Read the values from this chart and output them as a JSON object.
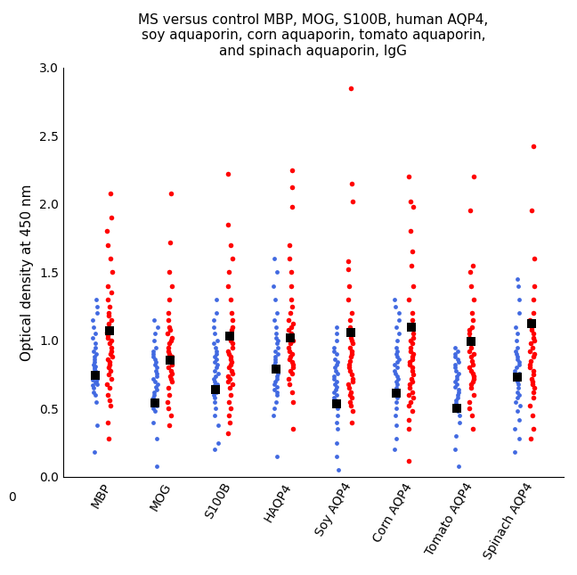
{
  "title": "MS versus control MBP, MOG, S100B, human AQP4,\nsoy aquaporin, corn aquaporin, tomato aquaporin,\nand spinach aquaporin, IgG",
  "ylabel": "Optical density at 450 nm",
  "categories": [
    "MBP",
    "MOG",
    "S100B",
    "HAQP4",
    "Soy AQP4",
    "Corn AQP4",
    "Tomato AQP4",
    "Spinach AQP4"
  ],
  "ylim": [
    0,
    3.0
  ],
  "yticks": [
    0,
    0.5,
    1.0,
    1.5,
    2.0,
    2.5,
    3.0
  ],
  "blue_color": "#4169E1",
  "red_color": "#FF0000",
  "mean_color": "#000000",
  "blue_data": {
    "MBP": [
      0.18,
      0.38,
      0.55,
      0.6,
      0.62,
      0.65,
      0.67,
      0.68,
      0.69,
      0.7,
      0.71,
      0.72,
      0.73,
      0.74,
      0.75,
      0.76,
      0.77,
      0.78,
      0.79,
      0.8,
      0.81,
      0.82,
      0.84,
      0.86,
      0.88,
      0.9,
      0.92,
      0.95,
      0.98,
      1.02,
      1.05,
      1.1,
      1.15,
      1.2,
      1.25,
      1.3
    ],
    "MOG": [
      0.08,
      0.28,
      0.4,
      0.48,
      0.5,
      0.52,
      0.54,
      0.56,
      0.58,
      0.6,
      0.62,
      0.64,
      0.66,
      0.68,
      0.7,
      0.72,
      0.74,
      0.76,
      0.78,
      0.8,
      0.82,
      0.84,
      0.86,
      0.88,
      0.9,
      0.92,
      0.95,
      1.0,
      1.05,
      1.1,
      1.15
    ],
    "S100B": [
      0.2,
      0.25,
      0.38,
      0.45,
      0.5,
      0.55,
      0.58,
      0.6,
      0.62,
      0.64,
      0.65,
      0.67,
      0.68,
      0.7,
      0.72,
      0.74,
      0.76,
      0.78,
      0.8,
      0.82,
      0.84,
      0.86,
      0.88,
      0.9,
      0.92,
      0.95,
      0.98,
      1.0,
      1.05,
      1.1,
      1.15,
      1.2,
      1.3
    ],
    "HAQP4": [
      0.15,
      0.45,
      0.5,
      0.55,
      0.6,
      0.62,
      0.64,
      0.66,
      0.68,
      0.7,
      0.72,
      0.74,
      0.76,
      0.78,
      0.8,
      0.82,
      0.84,
      0.86,
      0.88,
      0.9,
      0.92,
      0.95,
      0.98,
      1.0,
      1.02,
      1.05,
      1.1,
      1.15,
      1.2,
      1.3,
      1.4,
      1.5,
      1.6
    ],
    "Soy AQP4": [
      0.05,
      0.15,
      0.25,
      0.35,
      0.4,
      0.45,
      0.5,
      0.52,
      0.54,
      0.56,
      0.58,
      0.6,
      0.62,
      0.64,
      0.66,
      0.68,
      0.7,
      0.72,
      0.74,
      0.76,
      0.78,
      0.8,
      0.82,
      0.84,
      0.86,
      0.9,
      0.92,
      0.95,
      1.0,
      1.05,
      1.1
    ],
    "Corn AQP4": [
      0.2,
      0.28,
      0.38,
      0.45,
      0.5,
      0.55,
      0.58,
      0.6,
      0.62,
      0.65,
      0.68,
      0.7,
      0.72,
      0.74,
      0.76,
      0.78,
      0.8,
      0.82,
      0.84,
      0.86,
      0.88,
      0.9,
      0.92,
      0.95,
      1.0,
      1.05,
      1.1,
      1.15,
      1.2,
      1.25,
      1.3
    ],
    "Tomato AQP4": [
      0.08,
      0.2,
      0.3,
      0.4,
      0.45,
      0.48,
      0.5,
      0.52,
      0.54,
      0.56,
      0.58,
      0.6,
      0.62,
      0.64,
      0.66,
      0.68,
      0.7,
      0.72,
      0.74,
      0.76,
      0.78,
      0.8,
      0.82,
      0.84,
      0.86,
      0.88,
      0.9,
      0.92,
      0.95
    ],
    "Spinach AQP4": [
      0.18,
      0.28,
      0.35,
      0.42,
      0.48,
      0.52,
      0.55,
      0.58,
      0.6,
      0.62,
      0.65,
      0.68,
      0.7,
      0.72,
      0.74,
      0.76,
      0.78,
      0.8,
      0.82,
      0.84,
      0.86,
      0.88,
      0.9,
      0.92,
      0.95,
      1.0,
      1.05,
      1.1,
      1.2,
      1.3,
      1.4,
      1.45
    ]
  },
  "red_data": {
    "MBP": [
      0.28,
      0.4,
      0.52,
      0.56,
      0.6,
      0.65,
      0.68,
      0.72,
      0.75,
      0.78,
      0.8,
      0.82,
      0.84,
      0.86,
      0.88,
      0.9,
      0.92,
      0.95,
      0.98,
      1.0,
      1.02,
      1.04,
      1.06,
      1.08,
      1.1,
      1.12,
      1.15,
      1.18,
      1.2,
      1.25,
      1.3,
      1.35,
      1.4,
      1.5,
      1.6,
      1.7,
      1.8,
      1.9,
      2.08
    ],
    "MOG": [
      0.38,
      0.45,
      0.5,
      0.55,
      0.6,
      0.65,
      0.7,
      0.72,
      0.74,
      0.76,
      0.78,
      0.8,
      0.82,
      0.84,
      0.86,
      0.88,
      0.9,
      0.92,
      0.95,
      0.98,
      1.0,
      1.02,
      1.05,
      1.08,
      1.1,
      1.15,
      1.2,
      1.3,
      1.4,
      1.5,
      1.72,
      2.08
    ],
    "S100B": [
      0.32,
      0.4,
      0.45,
      0.5,
      0.55,
      0.6,
      0.65,
      0.68,
      0.7,
      0.72,
      0.74,
      0.76,
      0.78,
      0.8,
      0.82,
      0.84,
      0.86,
      0.88,
      0.9,
      0.92,
      0.95,
      0.98,
      1.0,
      1.02,
      1.05,
      1.08,
      1.1,
      1.15,
      1.2,
      1.3,
      1.4,
      1.5,
      1.6,
      1.7,
      1.85,
      2.22
    ],
    "HAQP4": [
      0.35,
      0.55,
      0.62,
      0.68,
      0.72,
      0.76,
      0.78,
      0.8,
      0.82,
      0.84,
      0.86,
      0.88,
      0.9,
      0.92,
      0.95,
      0.98,
      1.0,
      1.02,
      1.05,
      1.08,
      1.1,
      1.12,
      1.15,
      1.2,
      1.25,
      1.3,
      1.4,
      1.5,
      1.6,
      1.7,
      1.98,
      2.12,
      2.25
    ],
    "Soy AQP4": [
      0.4,
      0.48,
      0.52,
      0.55,
      0.58,
      0.6,
      0.62,
      0.65,
      0.68,
      0.7,
      0.72,
      0.75,
      0.78,
      0.8,
      0.82,
      0.85,
      0.88,
      0.9,
      0.92,
      0.95,
      0.98,
      1.0,
      1.02,
      1.05,
      1.08,
      1.1,
      1.15,
      1.2,
      1.3,
      1.4,
      1.52,
      1.58,
      2.02,
      2.15,
      2.85
    ],
    "Corn AQP4": [
      0.12,
      0.35,
      0.42,
      0.48,
      0.52,
      0.55,
      0.58,
      0.6,
      0.62,
      0.65,
      0.68,
      0.7,
      0.72,
      0.75,
      0.78,
      0.8,
      0.82,
      0.84,
      0.86,
      0.88,
      0.9,
      0.92,
      0.95,
      0.98,
      1.0,
      1.02,
      1.05,
      1.1,
      1.15,
      1.2,
      1.3,
      1.4,
      1.55,
      1.65,
      1.8,
      1.98,
      2.02,
      2.2
    ],
    "Tomato AQP4": [
      0.35,
      0.45,
      0.5,
      0.55,
      0.6,
      0.65,
      0.68,
      0.7,
      0.72,
      0.74,
      0.76,
      0.78,
      0.8,
      0.82,
      0.85,
      0.88,
      0.9,
      0.92,
      0.95,
      0.98,
      1.0,
      1.02,
      1.05,
      1.08,
      1.1,
      1.15,
      1.2,
      1.3,
      1.4,
      1.5,
      1.55,
      1.95,
      2.2
    ],
    "Spinach AQP4": [
      0.28,
      0.35,
      0.45,
      0.52,
      0.58,
      0.62,
      0.65,
      0.68,
      0.7,
      0.72,
      0.75,
      0.78,
      0.8,
      0.82,
      0.85,
      0.88,
      0.9,
      0.92,
      0.95,
      0.98,
      1.0,
      1.02,
      1.05,
      1.08,
      1.1,
      1.12,
      1.15,
      1.2,
      1.3,
      1.4,
      1.6,
      1.95,
      2.42
    ]
  },
  "blue_means": [
    0.745,
    0.545,
    0.64,
    0.79,
    0.535,
    0.615,
    0.505,
    0.73
  ],
  "red_means": [
    1.07,
    0.855,
    1.03,
    1.02,
    1.06,
    1.1,
    0.995,
    1.12
  ],
  "figwidth": 6.48,
  "figheight": 6.45,
  "dpi": 100
}
